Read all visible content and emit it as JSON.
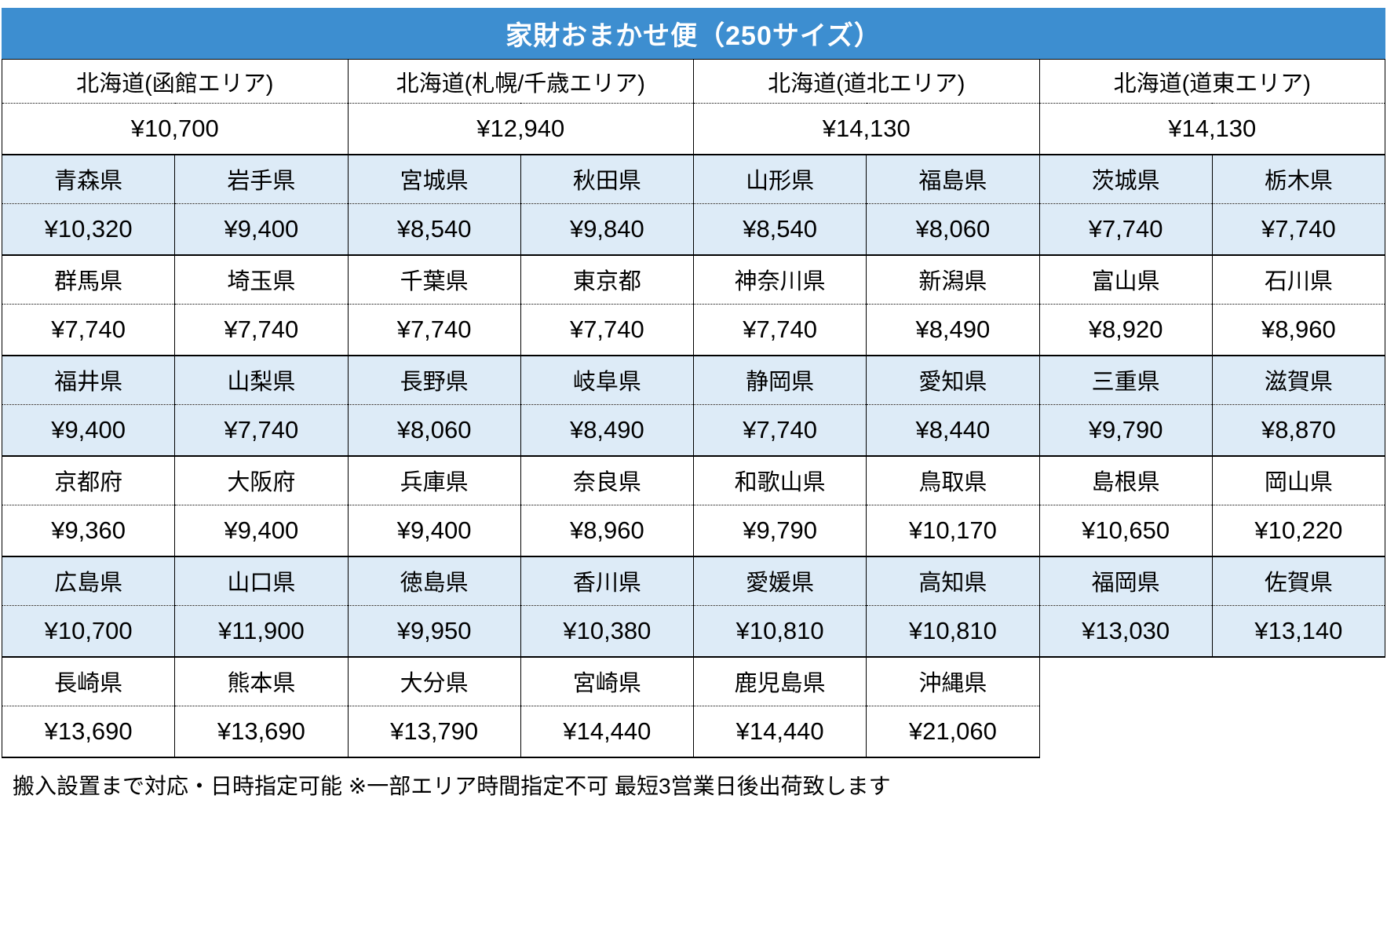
{
  "title": "家財おまかせ便（250サイズ）",
  "colors": {
    "header_bg": "#3D8ED0",
    "header_text": "#FFFFFF",
    "shaded_row_bg": "#DDEBF7",
    "plain_row_bg": "#FFFFFF",
    "border": "#000000"
  },
  "hokkaido_areas": [
    {
      "area": "北海道(函館エリア)",
      "price": "¥10,700"
    },
    {
      "area": "北海道(札幌/千歳エリア)",
      "price": "¥12,940"
    },
    {
      "area": "北海道(道北エリア)",
      "price": "¥14,130"
    },
    {
      "area": "北海道(道東エリア)",
      "price": "¥14,130"
    }
  ],
  "prefecture_groups": [
    {
      "shaded": true,
      "cells": [
        {
          "name": "青森県",
          "price": "¥10,320"
        },
        {
          "name": "岩手県",
          "price": "¥9,400"
        },
        {
          "name": "宮城県",
          "price": "¥8,540"
        },
        {
          "name": "秋田県",
          "price": "¥9,840"
        },
        {
          "name": "山形県",
          "price": "¥8,540"
        },
        {
          "name": "福島県",
          "price": "¥8,060"
        },
        {
          "name": "茨城県",
          "price": "¥7,740"
        },
        {
          "name": "栃木県",
          "price": "¥7,740"
        }
      ]
    },
    {
      "shaded": false,
      "cells": [
        {
          "name": "群馬県",
          "price": "¥7,740"
        },
        {
          "name": "埼玉県",
          "price": "¥7,740"
        },
        {
          "name": "千葉県",
          "price": "¥7,740"
        },
        {
          "name": "東京都",
          "price": "¥7,740"
        },
        {
          "name": "神奈川県",
          "price": "¥7,740"
        },
        {
          "name": "新潟県",
          "price": "¥8,490"
        },
        {
          "name": "富山県",
          "price": "¥8,920"
        },
        {
          "name": "石川県",
          "price": "¥8,960"
        }
      ]
    },
    {
      "shaded": true,
      "cells": [
        {
          "name": "福井県",
          "price": "¥9,400"
        },
        {
          "name": "山梨県",
          "price": "¥7,740"
        },
        {
          "name": "長野県",
          "price": "¥8,060"
        },
        {
          "name": "岐阜県",
          "price": "¥8,490"
        },
        {
          "name": "静岡県",
          "price": "¥7,740"
        },
        {
          "name": "愛知県",
          "price": "¥8,440"
        },
        {
          "name": "三重県",
          "price": "¥9,790"
        },
        {
          "name": "滋賀県",
          "price": "¥8,870"
        }
      ]
    },
    {
      "shaded": false,
      "cells": [
        {
          "name": "京都府",
          "price": "¥9,360"
        },
        {
          "name": "大阪府",
          "price": "¥9,400"
        },
        {
          "name": "兵庫県",
          "price": "¥9,400"
        },
        {
          "name": "奈良県",
          "price": "¥8,960"
        },
        {
          "name": "和歌山県",
          "price": "¥9,790"
        },
        {
          "name": "鳥取県",
          "price": "¥10,170"
        },
        {
          "name": "島根県",
          "price": "¥10,650"
        },
        {
          "name": "岡山県",
          "price": "¥10,220"
        }
      ]
    },
    {
      "shaded": true,
      "cells": [
        {
          "name": "広島県",
          "price": "¥10,700"
        },
        {
          "name": "山口県",
          "price": "¥11,900"
        },
        {
          "name": "徳島県",
          "price": "¥9,950"
        },
        {
          "name": "香川県",
          "price": "¥10,380"
        },
        {
          "name": "愛媛県",
          "price": "¥10,810"
        },
        {
          "name": "高知県",
          "price": "¥10,810"
        },
        {
          "name": "福岡県",
          "price": "¥13,030"
        },
        {
          "name": "佐賀県",
          "price": "¥13,140"
        }
      ]
    },
    {
      "shaded": false,
      "cells": [
        {
          "name": "長崎県",
          "price": "¥13,690"
        },
        {
          "name": "熊本県",
          "price": "¥13,690"
        },
        {
          "name": "大分県",
          "price": "¥13,790"
        },
        {
          "name": "宮崎県",
          "price": "¥14,440"
        },
        {
          "name": "鹿児島県",
          "price": "¥14,440"
        },
        {
          "name": "沖縄県",
          "price": "¥21,060"
        }
      ]
    }
  ],
  "footer_note": "搬入設置まで対応・日時指定可能 ※一部エリア時間指定不可 最短3営業日後出荷致します"
}
